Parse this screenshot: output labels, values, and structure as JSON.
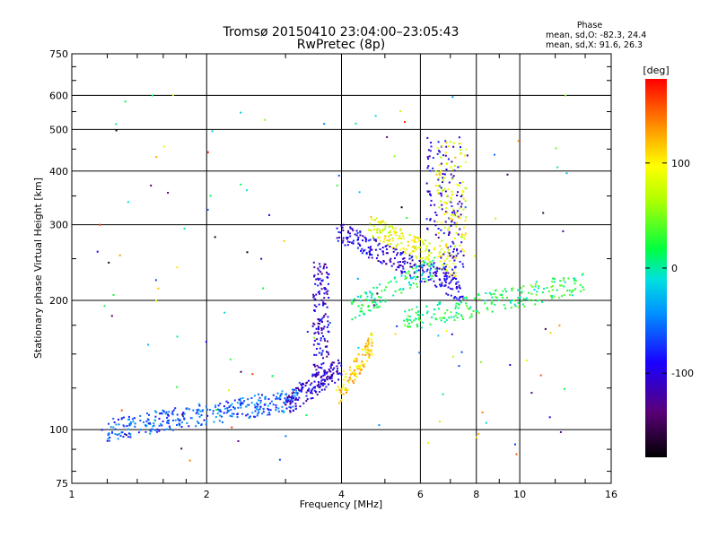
{
  "chart_data": {
    "type": "scatter",
    "title": "Tromsø 20150410 23:04:00–23:05:43",
    "subtitle": "RwPretec (8p)",
    "xlabel": "Frequency [MHz]",
    "ylabel": "Stationary phase Virtual Height [km]",
    "x_scale": "log",
    "y_scale": "log",
    "xlim": [
      1,
      16
    ],
    "ylim": [
      75,
      750
    ],
    "x_ticks": [
      1,
      2,
      4,
      6,
      8,
      10,
      16
    ],
    "y_ticks": [
      75,
      100,
      200,
      300,
      400,
      500,
      600,
      750
    ],
    "grid": true,
    "colorbar": {
      "label": "[deg]",
      "range": [
        -180,
        180
      ],
      "ticks": [
        -100,
        0,
        100
      ],
      "colormap": "rainbow"
    },
    "stats": {
      "heading": "Phase",
      "o_line": "mean, sd,O: -82.3, 24.4",
      "x_line": "mean, sd,X: 91.6, 26.3"
    },
    "clusters": [
      {
        "name": "low",
        "x_range": [
          1.2,
          3.2
        ],
        "y_start": 100,
        "y_end": 118,
        "phase": -60,
        "count": 340
      },
      {
        "name": "lower_O",
        "x_range": [
          3.0,
          4.0
        ],
        "y_start": 114,
        "y_end": 140,
        "phase": -105,
        "count": 140
      },
      {
        "name": "vertical_O",
        "x_range": [
          3.45,
          3.75
        ],
        "y_start": 125,
        "y_end": 245,
        "phase": -105,
        "count": 170
      },
      {
        "name": "lower_X",
        "x_range": [
          3.9,
          4.7
        ],
        "y_start": 118,
        "y_end": 160,
        "phase": 110,
        "count": 110
      },
      {
        "name": "upper_O",
        "x_range": [
          3.9,
          7.5
        ],
        "y_start": 290,
        "y_end": 210,
        "phase": -100,
        "count": 240
      },
      {
        "name": "upper_X",
        "x_range": [
          4.6,
          7.2
        ],
        "y_start": 300,
        "y_end": 240,
        "phase": 90,
        "count": 170
      },
      {
        "name": "high_spread",
        "x_range": [
          5.5,
          14
        ],
        "y_start": 180,
        "y_end": 220,
        "phase": 20,
        "count": 220
      },
      {
        "name": "tall_O",
        "x_range": [
          6.2,
          7.5
        ],
        "y_start": 230,
        "y_end": 480,
        "phase": -100,
        "count": 150
      },
      {
        "name": "tall_X",
        "x_range": [
          6.5,
          7.6
        ],
        "y_start": 260,
        "y_end": 470,
        "phase": 90,
        "count": 110
      },
      {
        "name": "mid_mixed",
        "x_range": [
          4.2,
          6.5
        ],
        "y_start": 190,
        "y_end": 240,
        "phase": 10,
        "count": 120
      },
      {
        "name": "scatter",
        "x_range": [
          1.1,
          13
        ],
        "y_start": 80,
        "y_end": 620,
        "phase": 0,
        "count": 130
      }
    ]
  }
}
